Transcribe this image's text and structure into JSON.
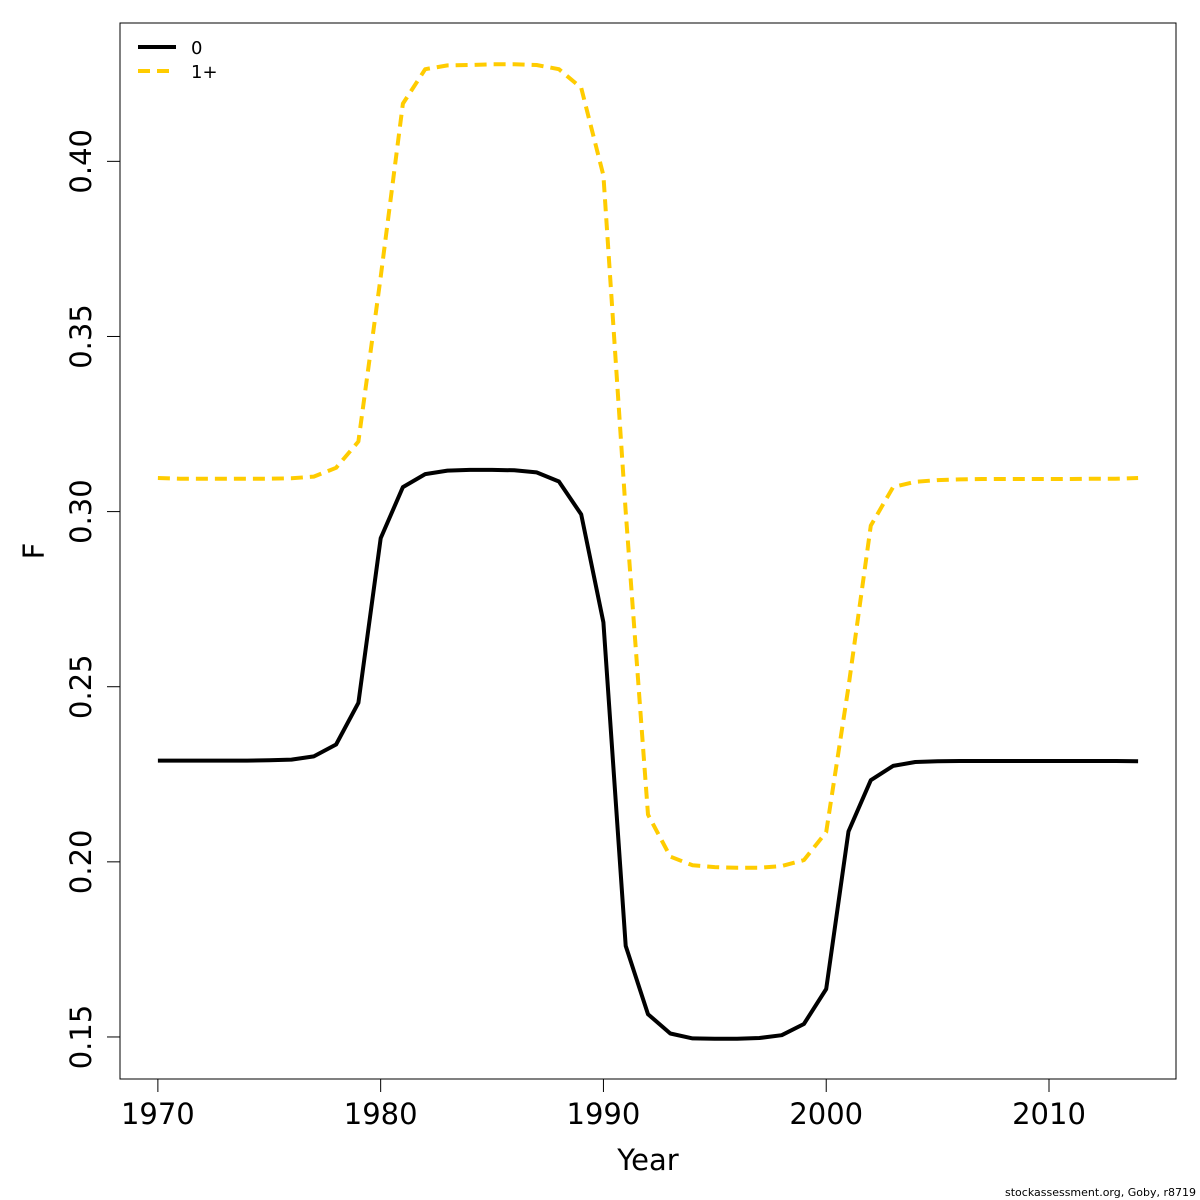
{
  "chart_data": {
    "type": "line",
    "xlabel": "Year",
    "ylabel": "F",
    "xlim": [
      1968.3,
      2015.7
    ],
    "ylim": [
      0.138,
      0.4395
    ],
    "x_ticks": [
      1970,
      1980,
      1990,
      2000,
      2010
    ],
    "x_tick_labels": [
      "1970",
      "1980",
      "1990",
      "2000",
      "2010"
    ],
    "y_ticks": [
      0.15,
      0.2,
      0.25,
      0.3,
      0.35,
      0.4
    ],
    "y_tick_labels": [
      "0.15",
      "0.20",
      "0.25",
      "0.30",
      "0.35",
      "0.40"
    ],
    "legend_position": "top-left",
    "grid": false,
    "x": [
      1970,
      1971,
      1972,
      1973,
      1974,
      1975,
      1976,
      1977,
      1978,
      1979,
      1980,
      1981,
      1982,
      1983,
      1984,
      1985,
      1986,
      1987,
      1988,
      1989,
      1990,
      1991,
      1992,
      1993,
      1994,
      1995,
      1996,
      1997,
      1998,
      1999,
      2000,
      2001,
      2002,
      2003,
      2004,
      2005,
      2006,
      2007,
      2008,
      2009,
      2010,
      2011,
      2012,
      2013,
      2014
    ],
    "series": [
      {
        "name": "0",
        "color": "#000000",
        "dash": "solid",
        "values": [
          0.2289,
          0.2289,
          0.2289,
          0.2289,
          0.2289,
          0.229,
          0.2292,
          0.2301,
          0.2335,
          0.2454,
          0.2924,
          0.307,
          0.3107,
          0.3117,
          0.3119,
          0.3119,
          0.3118,
          0.3112,
          0.3086,
          0.2992,
          0.2684,
          0.176,
          0.1565,
          0.151,
          0.1496,
          0.1495,
          0.1495,
          0.1497,
          0.1505,
          0.1537,
          0.1637,
          0.2087,
          0.2233,
          0.2274,
          0.2285,
          0.2287,
          0.2288,
          0.2288,
          0.2288,
          0.2288,
          0.2288,
          0.2288,
          0.2288,
          0.2288,
          0.2287
        ]
      },
      {
        "name": "1+",
        "color": "#FFCC00",
        "dash": "dashed",
        "values": [
          0.3096,
          0.3094,
          0.3094,
          0.3094,
          0.3094,
          0.3094,
          0.3095,
          0.31,
          0.3125,
          0.32,
          0.367,
          0.4165,
          0.4263,
          0.4274,
          0.4275,
          0.4277,
          0.4277,
          0.4275,
          0.4263,
          0.421,
          0.396,
          0.3,
          0.2135,
          0.2015,
          0.199,
          0.1985,
          0.1983,
          0.1983,
          0.1988,
          0.2005,
          0.2085,
          0.25,
          0.296,
          0.307,
          0.3085,
          0.309,
          0.3092,
          0.3093,
          0.3093,
          0.3093,
          0.3093,
          0.3093,
          0.3094,
          0.3094,
          0.3096
        ]
      }
    ],
    "credit": "stockassessment.org, Goby, r8719"
  }
}
